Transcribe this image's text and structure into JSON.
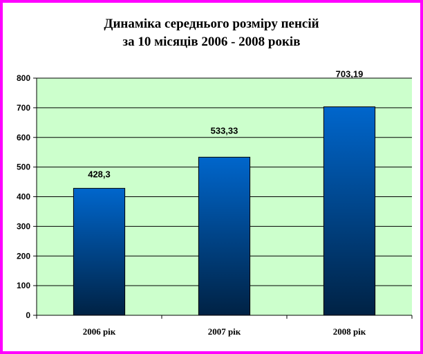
{
  "chart_data": {
    "type": "bar",
    "title_line1": "Динаміка середнього розміру пенсій",
    "title_line2": "за 10 місяців 2006 - 2008 років",
    "categories": [
      "2006 рік",
      "2007 рік",
      "2008 рік"
    ],
    "values": [
      428.3,
      533.33,
      703.19
    ],
    "value_labels": [
      "428,3",
      "533,33",
      "703,19"
    ],
    "ylim": [
      0,
      800
    ],
    "yticks": [
      0,
      100,
      200,
      300,
      400,
      500,
      600,
      700,
      800
    ],
    "grid": true,
    "legend": false,
    "colors": {
      "border": "#ff00ff",
      "plot_bg": "#ccffcc",
      "bar_top": "#0066cc",
      "bar_bottom": "#002244",
      "grid": "#000000"
    }
  }
}
